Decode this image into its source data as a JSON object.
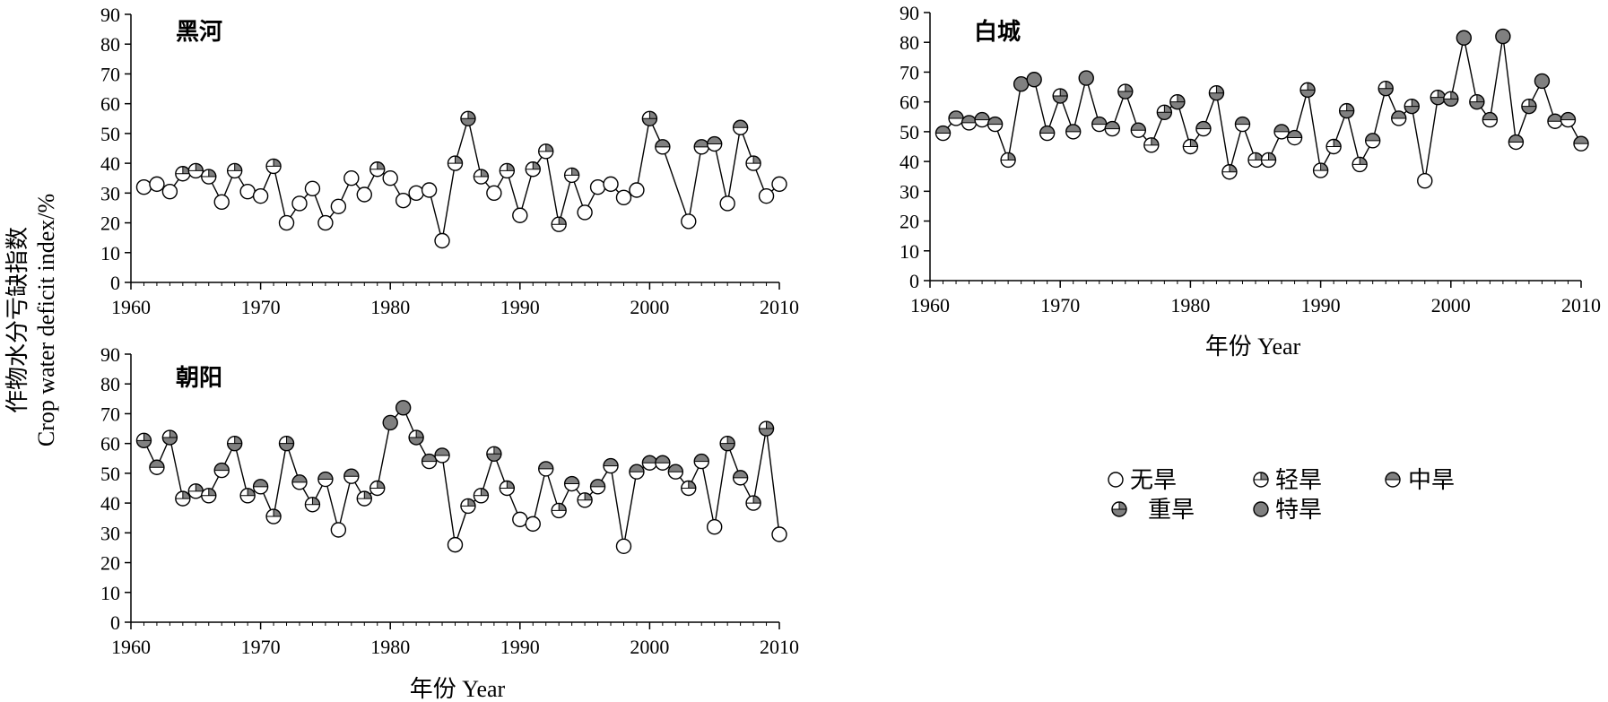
{
  "y_axis_label": {
    "line1": "作物水分亏缺指数",
    "line2": "Crop water deficit index/%"
  },
  "legend": [
    {
      "key": "none",
      "label": "无旱"
    },
    {
      "key": "light",
      "label": "轻旱"
    },
    {
      "key": "moderate",
      "label": "中旱"
    },
    {
      "key": "severe",
      "label": "重旱"
    },
    {
      "key": "extreme",
      "label": "特旱"
    }
  ],
  "colors": {
    "marker_fill": "#808080",
    "marker_stroke": "#000000",
    "line": "#000000"
  },
  "chart_data": [
    {
      "type": "line",
      "title": "黑河",
      "xlabel": "",
      "xlim": [
        1960,
        2010
      ],
      "ylim": [
        0,
        90
      ],
      "x": [
        1961,
        1962,
        1963,
        1964,
        1965,
        1966,
        1967,
        1968,
        1969,
        1970,
        1971,
        1972,
        1973,
        1974,
        1975,
        1976,
        1977,
        1978,
        1979,
        1980,
        1981,
        1982,
        1983,
        1984,
        1985,
        1986,
        1987,
        1988,
        1989,
        1990,
        1991,
        1992,
        1993,
        1994,
        1995,
        1996,
        1997,
        1998,
        1999,
        2000,
        2001,
        2003,
        2004,
        2005,
        2006,
        2007,
        2008,
        2009,
        2010
      ],
      "values": [
        32,
        33,
        30.5,
        36.5,
        37.5,
        35.5,
        27,
        37.5,
        30.5,
        29,
        39,
        20,
        26.5,
        31.5,
        20,
        25.5,
        35,
        29.5,
        38,
        35,
        27.5,
        30,
        31,
        14,
        40,
        55,
        35.5,
        30,
        37.5,
        22.5,
        38,
        44,
        19.5,
        36,
        23.5,
        32,
        33,
        28.5,
        31,
        55,
        45.5,
        20.5,
        45.5,
        46.5,
        26.5,
        52,
        40,
        29,
        33
      ],
      "grade": [
        "none",
        "none",
        "none",
        "light",
        "light",
        "light",
        "none",
        "light",
        "none",
        "none",
        "light",
        "none",
        "none",
        "none",
        "none",
        "none",
        "none",
        "none",
        "light",
        "none",
        "none",
        "none",
        "none",
        "none",
        "light",
        "severe",
        "light",
        "none",
        "light",
        "none",
        "light",
        "light",
        "light",
        "light",
        "none",
        "none",
        "none",
        "none",
        "none",
        "severe",
        "moderate",
        "none",
        "moderate",
        "moderate",
        "none",
        "moderate",
        "light",
        "none",
        "none"
      ]
    },
    {
      "type": "line",
      "title": "白城",
      "xlabel": "年份 Year",
      "xlim": [
        1960,
        2010
      ],
      "ylim": [
        0,
        90
      ],
      "x": [
        1961,
        1962,
        1963,
        1964,
        1965,
        1966,
        1967,
        1968,
        1969,
        1970,
        1971,
        1972,
        1973,
        1974,
        1975,
        1976,
        1977,
        1978,
        1979,
        1980,
        1981,
        1982,
        1983,
        1984,
        1985,
        1986,
        1987,
        1988,
        1989,
        1990,
        1991,
        1992,
        1993,
        1994,
        1995,
        1996,
        1997,
        1998,
        1999,
        2000,
        2001,
        2002,
        2003,
        2004,
        2005,
        2006,
        2007,
        2008,
        2009,
        2010
      ],
      "values": [
        49.5,
        54.5,
        53,
        54,
        52.5,
        40.5,
        66,
        67.5,
        49.5,
        62,
        50,
        68,
        52.5,
        51,
        63.5,
        50.5,
        45.5,
        56.5,
        60,
        45,
        51,
        63,
        36.5,
        52.5,
        40.5,
        40.5,
        50,
        48,
        64,
        37,
        45,
        57,
        39,
        47,
        64.5,
        54.5,
        58.5,
        33.5,
        61.5,
        61,
        81.5,
        60,
        54,
        82,
        46.5,
        58.5,
        67,
        53.5,
        54,
        46
      ],
      "grade": [
        "moderate",
        "moderate",
        "moderate",
        "moderate",
        "moderate",
        "light",
        "extreme",
        "extreme",
        "moderate",
        "severe",
        "moderate",
        "extreme",
        "moderate",
        "moderate",
        "severe",
        "moderate",
        "light",
        "severe",
        "severe",
        "light",
        "moderate",
        "severe",
        "light",
        "moderate",
        "light",
        "light",
        "moderate",
        "moderate",
        "severe",
        "light",
        "light",
        "severe",
        "light",
        "moderate",
        "severe",
        "moderate",
        "severe",
        "none",
        "severe",
        "severe",
        "extreme",
        "severe",
        "moderate",
        "extreme",
        "moderate",
        "severe",
        "extreme",
        "moderate",
        "moderate",
        "moderate"
      ]
    },
    {
      "type": "line",
      "title": "朝阳",
      "xlabel": "年份 Year",
      "xlim": [
        1960,
        2010
      ],
      "ylim": [
        0,
        90
      ],
      "x": [
        1961,
        1962,
        1963,
        1964,
        1965,
        1966,
        1967,
        1968,
        1969,
        1970,
        1971,
        1972,
        1973,
        1974,
        1975,
        1976,
        1977,
        1978,
        1979,
        1980,
        1981,
        1982,
        1983,
        1984,
        1985,
        1986,
        1987,
        1988,
        1989,
        1990,
        1991,
        1992,
        1993,
        1994,
        1995,
        1996,
        1997,
        1998,
        1999,
        2000,
        2001,
        2002,
        2003,
        2004,
        2005,
        2006,
        2007,
        2008,
        2009,
        2010
      ],
      "values": [
        61,
        52,
        62,
        41.5,
        44,
        42.5,
        51,
        60,
        42.5,
        45.5,
        35.5,
        60,
        47,
        39.5,
        48,
        31,
        49,
        41.5,
        45,
        67,
        72,
        62,
        54,
        56,
        26,
        39,
        42.5,
        56.5,
        45,
        34.5,
        33,
        51.5,
        37.5,
        46.5,
        41,
        45.5,
        52.5,
        25.5,
        50.5,
        53.5,
        53.5,
        50.5,
        45,
        54,
        32,
        60,
        48.5,
        40,
        65,
        29.5
      ],
      "grade": [
        "severe",
        "moderate",
        "severe",
        "light",
        "light",
        "light",
        "moderate",
        "severe",
        "light",
        "moderate",
        "light",
        "severe",
        "moderate",
        "light",
        "moderate",
        "none",
        "moderate",
        "light",
        "light",
        "extreme",
        "extreme",
        "severe",
        "moderate",
        "moderate",
        "none",
        "light",
        "light",
        "severe",
        "light",
        "none",
        "none",
        "moderate",
        "light",
        "moderate",
        "light",
        "moderate",
        "moderate",
        "none",
        "moderate",
        "moderate",
        "moderate",
        "moderate",
        "light",
        "moderate",
        "none",
        "severe",
        "moderate",
        "light",
        "severe",
        "none"
      ]
    }
  ]
}
